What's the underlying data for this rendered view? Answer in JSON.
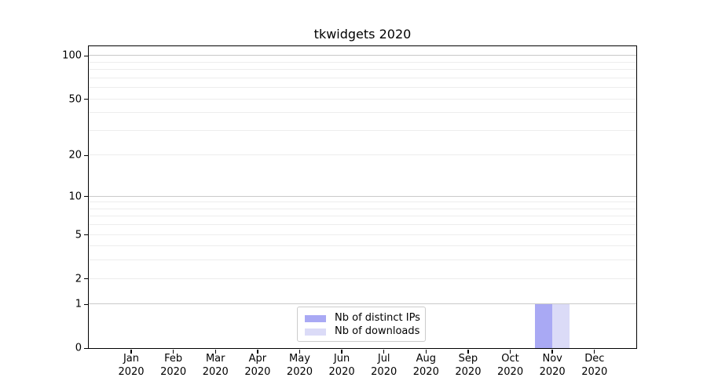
{
  "chart_data": {
    "type": "bar",
    "title": "tkwidgets 2020",
    "xlabel": "",
    "ylabel": "",
    "categories": [
      "Jan",
      "Feb",
      "Mar",
      "Apr",
      "May",
      "Jun",
      "Jul",
      "Aug",
      "Sep",
      "Oct",
      "Nov",
      "Dec"
    ],
    "category_year": "2020",
    "series": [
      {
        "name": "Nb of distinct IPs",
        "color": "#a9a9f4",
        "values": [
          0,
          0,
          0,
          0,
          0,
          0,
          0,
          0,
          0,
          0,
          1,
          0
        ]
      },
      {
        "name": "Nb of downloads",
        "color": "#dbdbf7",
        "values": [
          0,
          0,
          0,
          0,
          0,
          0,
          0,
          0,
          0,
          0,
          1,
          0
        ]
      }
    ],
    "yscale": "log1p",
    "ylim": [
      0,
      116
    ],
    "yticks": [
      0,
      1,
      2,
      5,
      10,
      20,
      50,
      100
    ],
    "grid": {
      "major_values": [
        1,
        10,
        100
      ],
      "minor_values": [
        2,
        3,
        4,
        5,
        6,
        7,
        8,
        9,
        20,
        30,
        40,
        50,
        60,
        70,
        80,
        90
      ]
    },
    "legend_position": "lower center",
    "colors": {
      "grid_major": "#c9c9c9",
      "grid_minor": "#ededed",
      "axis": "#000000",
      "background": "#ffffff"
    }
  }
}
